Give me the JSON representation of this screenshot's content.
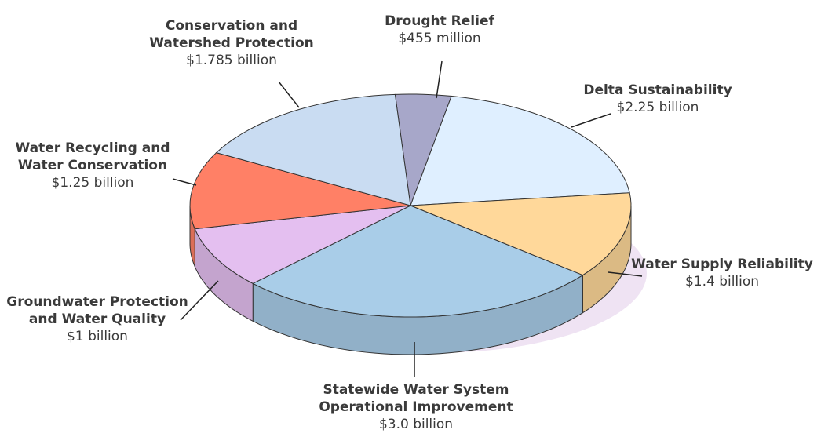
{
  "chart_data": {
    "type": "pie",
    "title": "",
    "colors": {
      "drought": "#a7a7c9",
      "delta": "#dfefff",
      "supply": "#ffd89a",
      "statewide": "#a9cde8",
      "groundwater": "#e4bff0",
      "recycling": "#ff8066",
      "conservation": "#c9dcf2"
    },
    "slices": [
      {
        "id": "drought",
        "name": "Drought Relief",
        "value": 0.455,
        "value_label": "$455 million"
      },
      {
        "id": "delta",
        "name": "Delta Sustainability",
        "value": 2.25,
        "value_label": "$2.25 billion"
      },
      {
        "id": "supply",
        "name": "Water Supply Reliability",
        "value": 1.4,
        "value_label": "$1.4 billion"
      },
      {
        "id": "statewide",
        "name": "Statewide Water System Operational Improvement",
        "value": 3.0,
        "value_label": "$3.0 billion"
      },
      {
        "id": "groundwater",
        "name": "Groundwater Protection and Water Quality",
        "value": 1.0,
        "value_label": "$1 billion"
      },
      {
        "id": "recycling",
        "name": "Water Recycling and Water Conservation",
        "value": 1.25,
        "value_label": "$1.25 billion"
      },
      {
        "id": "conservation",
        "name": "Conservation and Watershed Protection",
        "value": 1.785,
        "value_label": "$1.785 billion"
      }
    ],
    "labels": {
      "drought": {
        "name_lines": [
          "Drought Relief"
        ]
      },
      "delta": {
        "name_lines": [
          "Delta Sustainability"
        ]
      },
      "supply": {
        "name_lines": [
          "Water Supply Reliability"
        ]
      },
      "statewide": {
        "name_lines": [
          "Statewide Water System",
          "Operational Improvement"
        ]
      },
      "groundwater": {
        "name_lines": [
          "Groundwater Protection",
          "and Water Quality"
        ]
      },
      "recycling": {
        "name_lines": [
          "Water Recycling and",
          "Water Conservation"
        ]
      },
      "conservation": {
        "name_lines": [
          "Conservation and",
          "Watershed Protection"
        ]
      }
    }
  }
}
